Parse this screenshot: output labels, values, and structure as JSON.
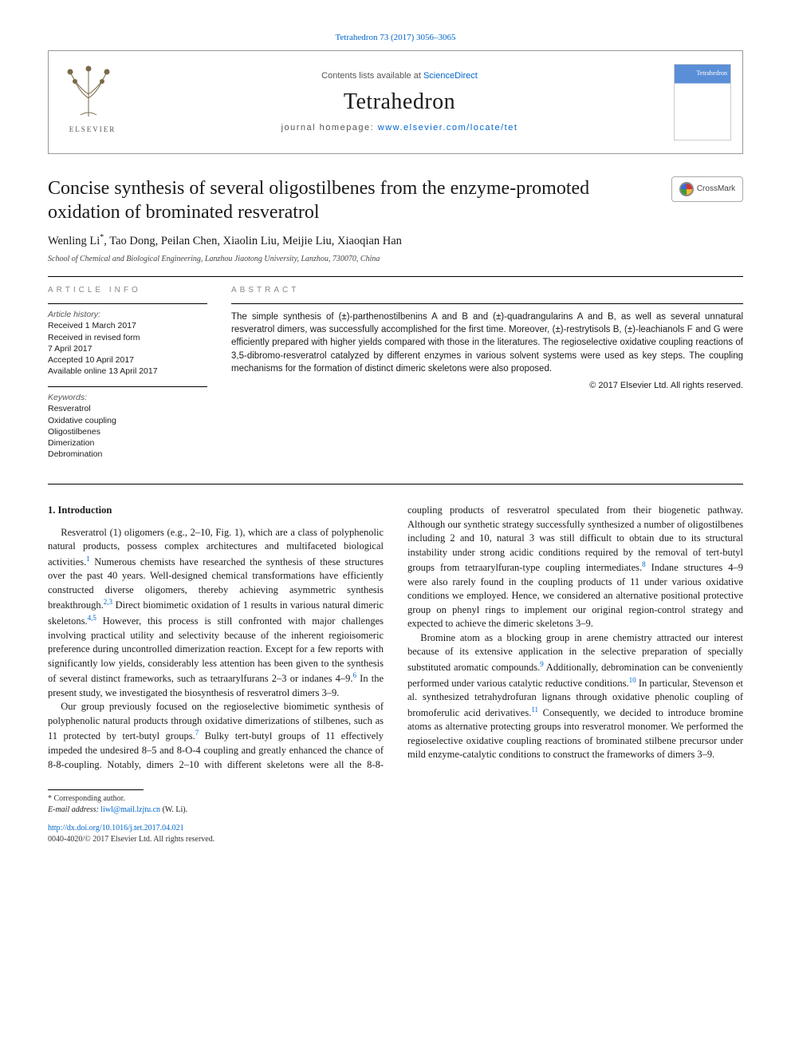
{
  "top_link": "Tetrahedron 73 (2017) 3056–3065",
  "header": {
    "contents_prefix": "Contents lists available at ",
    "contents_link": "ScienceDirect",
    "journal_name": "Tetrahedron",
    "homepage_prefix": "journal homepage: ",
    "homepage_link": "www.elsevier.com/locate/tet",
    "publisher_logo_text": "ELSEVIER",
    "cover_title": "Tetrahedron"
  },
  "crossmark_label": "CrossMark",
  "article": {
    "title": "Concise synthesis of several oligostilbenes from the enzyme-promoted oxidation of brominated resveratrol",
    "authors_html": "Wenling Li<sup data-name=\"corresponding-marker\">*</sup>, Tao Dong, Peilan Chen, Xiaolin Liu, Meijie Liu, Xiaoqian Han",
    "affiliation": "School of Chemical and Biological Engineering, Lanzhou Jiaotong University, Lanzhou, 730070, China"
  },
  "info": {
    "heading": "ARTICLE INFO",
    "history_label": "Article history:",
    "history_lines": [
      "Received 1 March 2017",
      "Received in revised form",
      "7 April 2017",
      "Accepted 10 April 2017",
      "Available online 13 April 2017"
    ],
    "keywords_label": "Keywords:",
    "keywords": [
      "Resveratrol",
      "Oxidative coupling",
      "Oligostilbenes",
      "Dimerization",
      "Debromination"
    ]
  },
  "abstract": {
    "heading": "ABSTRACT",
    "text": "The simple synthesis of (±)-parthenostilbenins A and B and (±)-quadrangularins A and B, as well as several unnatural resveratrol dimers, was successfully accomplished for the first time. Moreover, (±)-restrytisols B, (±)-leachianols F and G were efficiently prepared with higher yields compared with those in the literatures. The regioselective oxidative coupling reactions of 3,5-dibromo-resveratrol catalyzed by different enzymes in various solvent systems were used as key steps. The coupling mechanisms for the formation of distinct dimeric skeletons were also proposed.",
    "copyright": "© 2017 Elsevier Ltd. All rights reserved."
  },
  "body": {
    "section_heading": "1. Introduction",
    "p1": "Resveratrol (1) oligomers (e.g., 2–10, Fig. 1), which are a class of polyphenolic natural products, possess complex architectures and multifaceted biological activities.",
    "p1_tail": " Numerous chemists have researched the synthesis of these structures over the past 40 years. Well-designed chemical transformations have efficiently constructed diverse oligomers, thereby achieving asymmetric synthesis breakthrough.",
    "p1_tail2": " Direct biomimetic oxidation of 1 results in various natural dimeric skeletons.",
    "p1_tail3": " However, this process is still confronted with major challenges involving practical utility and selectivity because of the inherent regioisomeric preference during uncontrolled dimerization reaction. Except for a few reports with significantly low yields, considerably less attention has been given to the synthesis of several distinct frameworks, such as tetraarylfurans 2–3 or indanes 4–9.",
    "p1_tail4": " In the present study, we investigated the biosynthesis of resveratrol dimers 3–9.",
    "p2": "Our group previously focused on the regioselective biomimetic synthesis of polyphenolic natural products through oxidative dimerizations of stilbenes, such as 11 protected by tert-butyl groups.",
    "p2_tail": " Bulky tert-butyl groups of 11 effectively impeded the undesired 8–5 and 8-O-4 coupling and greatly enhanced the chance of 8-8-",
    "p3": "coupling. Notably, dimers 2–10 with different skeletons were all the 8-8-coupling products of resveratrol speculated from their biogenetic pathway. Although our synthetic strategy successfully synthesized a number of oligostilbenes including 2 and 10, natural 3 was still difficult to obtain due to its structural instability under strong acidic conditions required by the removal of tert-butyl groups from tetraarylfuran-type coupling intermediates.",
    "p3_tail": " Indane structures 4–9 were also rarely found in the coupling products of 11 under various oxidative conditions we employed. Hence, we considered an alternative positional protective group on phenyl rings to implement our original region-control strategy and expected to achieve the dimeric skeletons 3–9.",
    "p4": "Bromine atom as a blocking group in arene chemistry attracted our interest because of its extensive application in the selective preparation of specially substituted aromatic compounds.",
    "p4_tail": " Additionally, debromination can be conveniently performed under various catalytic reductive conditions.",
    "p4_tail2": " In particular, Stevenson et al. synthesized tetrahydrofuran lignans through oxidative phenolic coupling of bromoferulic acid derivatives.",
    "p4_tail3": " Consequently, we decided to introduce bromine atoms as alternative protecting groups into resveratrol monomer. We performed the regioselective oxidative coupling reactions of brominated stilbene precursor under mild enzyme-catalytic conditions to construct the frameworks of dimers 3–9.",
    "refs": {
      "r1": "1",
      "r23": "2,3",
      "r45": "4,5",
      "r6": "6",
      "r7": "7",
      "r8": "8",
      "r9": "9",
      "r10": "10",
      "r11": "11"
    },
    "fig_link": "Fig. 1"
  },
  "footer": {
    "corr": "* Corresponding author.",
    "email_label": "E-mail address: ",
    "email": "liwl@mail.lzjtu.cn",
    "email_tail": " (W. Li).",
    "doi": "http://dx.doi.org/10.1016/j.tet.2017.04.021",
    "issn_line": "0040-4020/© 2017 Elsevier Ltd. All rights reserved."
  },
  "colors": {
    "link": "#0066cc",
    "rule": "#000000",
    "muted": "#888888",
    "cover_blue": "#5a8fd8"
  }
}
